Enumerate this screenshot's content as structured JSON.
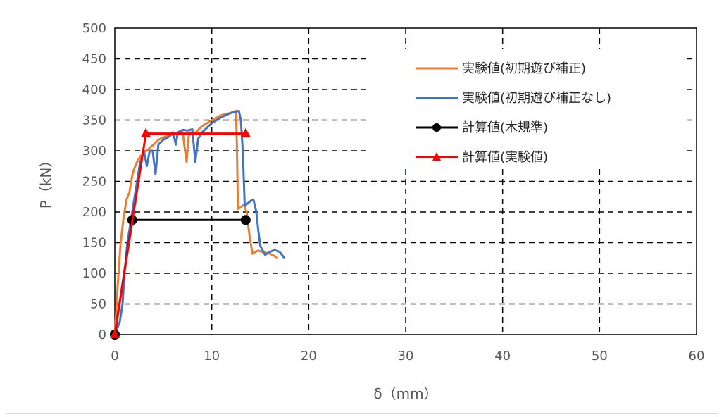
{
  "chart_data": {
    "type": "line",
    "xlabel": "δ（mm）",
    "ylabel": "P（kN）",
    "xlim": [
      0,
      60
    ],
    "ylim": [
      0,
      500
    ],
    "xticks": [
      0,
      10,
      20,
      30,
      40,
      50,
      60
    ],
    "yticks": [
      0,
      50,
      100,
      150,
      200,
      250,
      300,
      350,
      400,
      450,
      500
    ],
    "grid": true,
    "legend_position": "top-right",
    "series": [
      {
        "name": "実験値(初期遊び補正)",
        "color": "#ed7d31",
        "marker": "none",
        "x": [
          0,
          0.3,
          0.6,
          0.9,
          1.2,
          1.5,
          1.8,
          2.1,
          2.4,
          2.7,
          3.0,
          3.3,
          3.6,
          4.0,
          4.5,
          5.0,
          5.5,
          6.0,
          6.5,
          7.0,
          7.4,
          7.6,
          7.8,
          8.2,
          9.0,
          10.0,
          11.0,
          12.0,
          12.5,
          12.6,
          12.7,
          13.0,
          13.3,
          13.6,
          13.9,
          14.2,
          14.5,
          14.8,
          15.2,
          16.0,
          16.5,
          16.8
        ],
        "y": [
          0,
          80,
          150,
          190,
          220,
          232,
          260,
          275,
          285,
          292,
          298,
          300,
          305,
          310,
          318,
          322,
          324,
          326,
          328,
          330,
          282,
          322,
          330,
          328,
          340,
          350,
          358,
          362,
          365,
          300,
          205,
          208,
          212,
          200,
          160,
          132,
          135,
          137,
          135,
          132,
          128,
          125
        ]
      },
      {
        "name": "実験値(初期遊び補正なし)",
        "color": "#4472c4",
        "marker": "none",
        "x": [
          0,
          0.5,
          0.8,
          1.0,
          1.3,
          1.6,
          2.0,
          2.3,
          2.6,
          3.0,
          3.3,
          3.6,
          3.9,
          4.2,
          4.5,
          5.0,
          5.5,
          6.0,
          6.3,
          6.5,
          7.0,
          7.5,
          8.0,
          8.3,
          8.6,
          9.0,
          10.0,
          11.0,
          12.0,
          12.8,
          13.0,
          13.2,
          13.4,
          13.7,
          14.0,
          14.3,
          14.6,
          14.8,
          15.0,
          15.5,
          16.0,
          16.5,
          17.0,
          17.5
        ],
        "y": [
          0,
          20,
          50,
          100,
          150,
          180,
          220,
          250,
          280,
          300,
          275,
          300,
          300,
          262,
          310,
          318,
          322,
          330,
          310,
          330,
          334,
          333,
          335,
          282,
          320,
          330,
          345,
          355,
          362,
          365,
          350,
          300,
          210,
          214,
          218,
          220,
          200,
          170,
          145,
          130,
          135,
          138,
          135,
          125
        ]
      },
      {
        "name": "計算値(木規準)",
        "color": "#000000",
        "marker": "circle",
        "x": [
          0,
          1.8,
          13.5
        ],
        "y": [
          0,
          187,
          187
        ]
      },
      {
        "name": "計算値(実験値)",
        "color": "#ff0000",
        "marker": "triangle",
        "x": [
          0,
          3.2,
          13.5
        ],
        "y": [
          0,
          328,
          328
        ]
      }
    ]
  }
}
